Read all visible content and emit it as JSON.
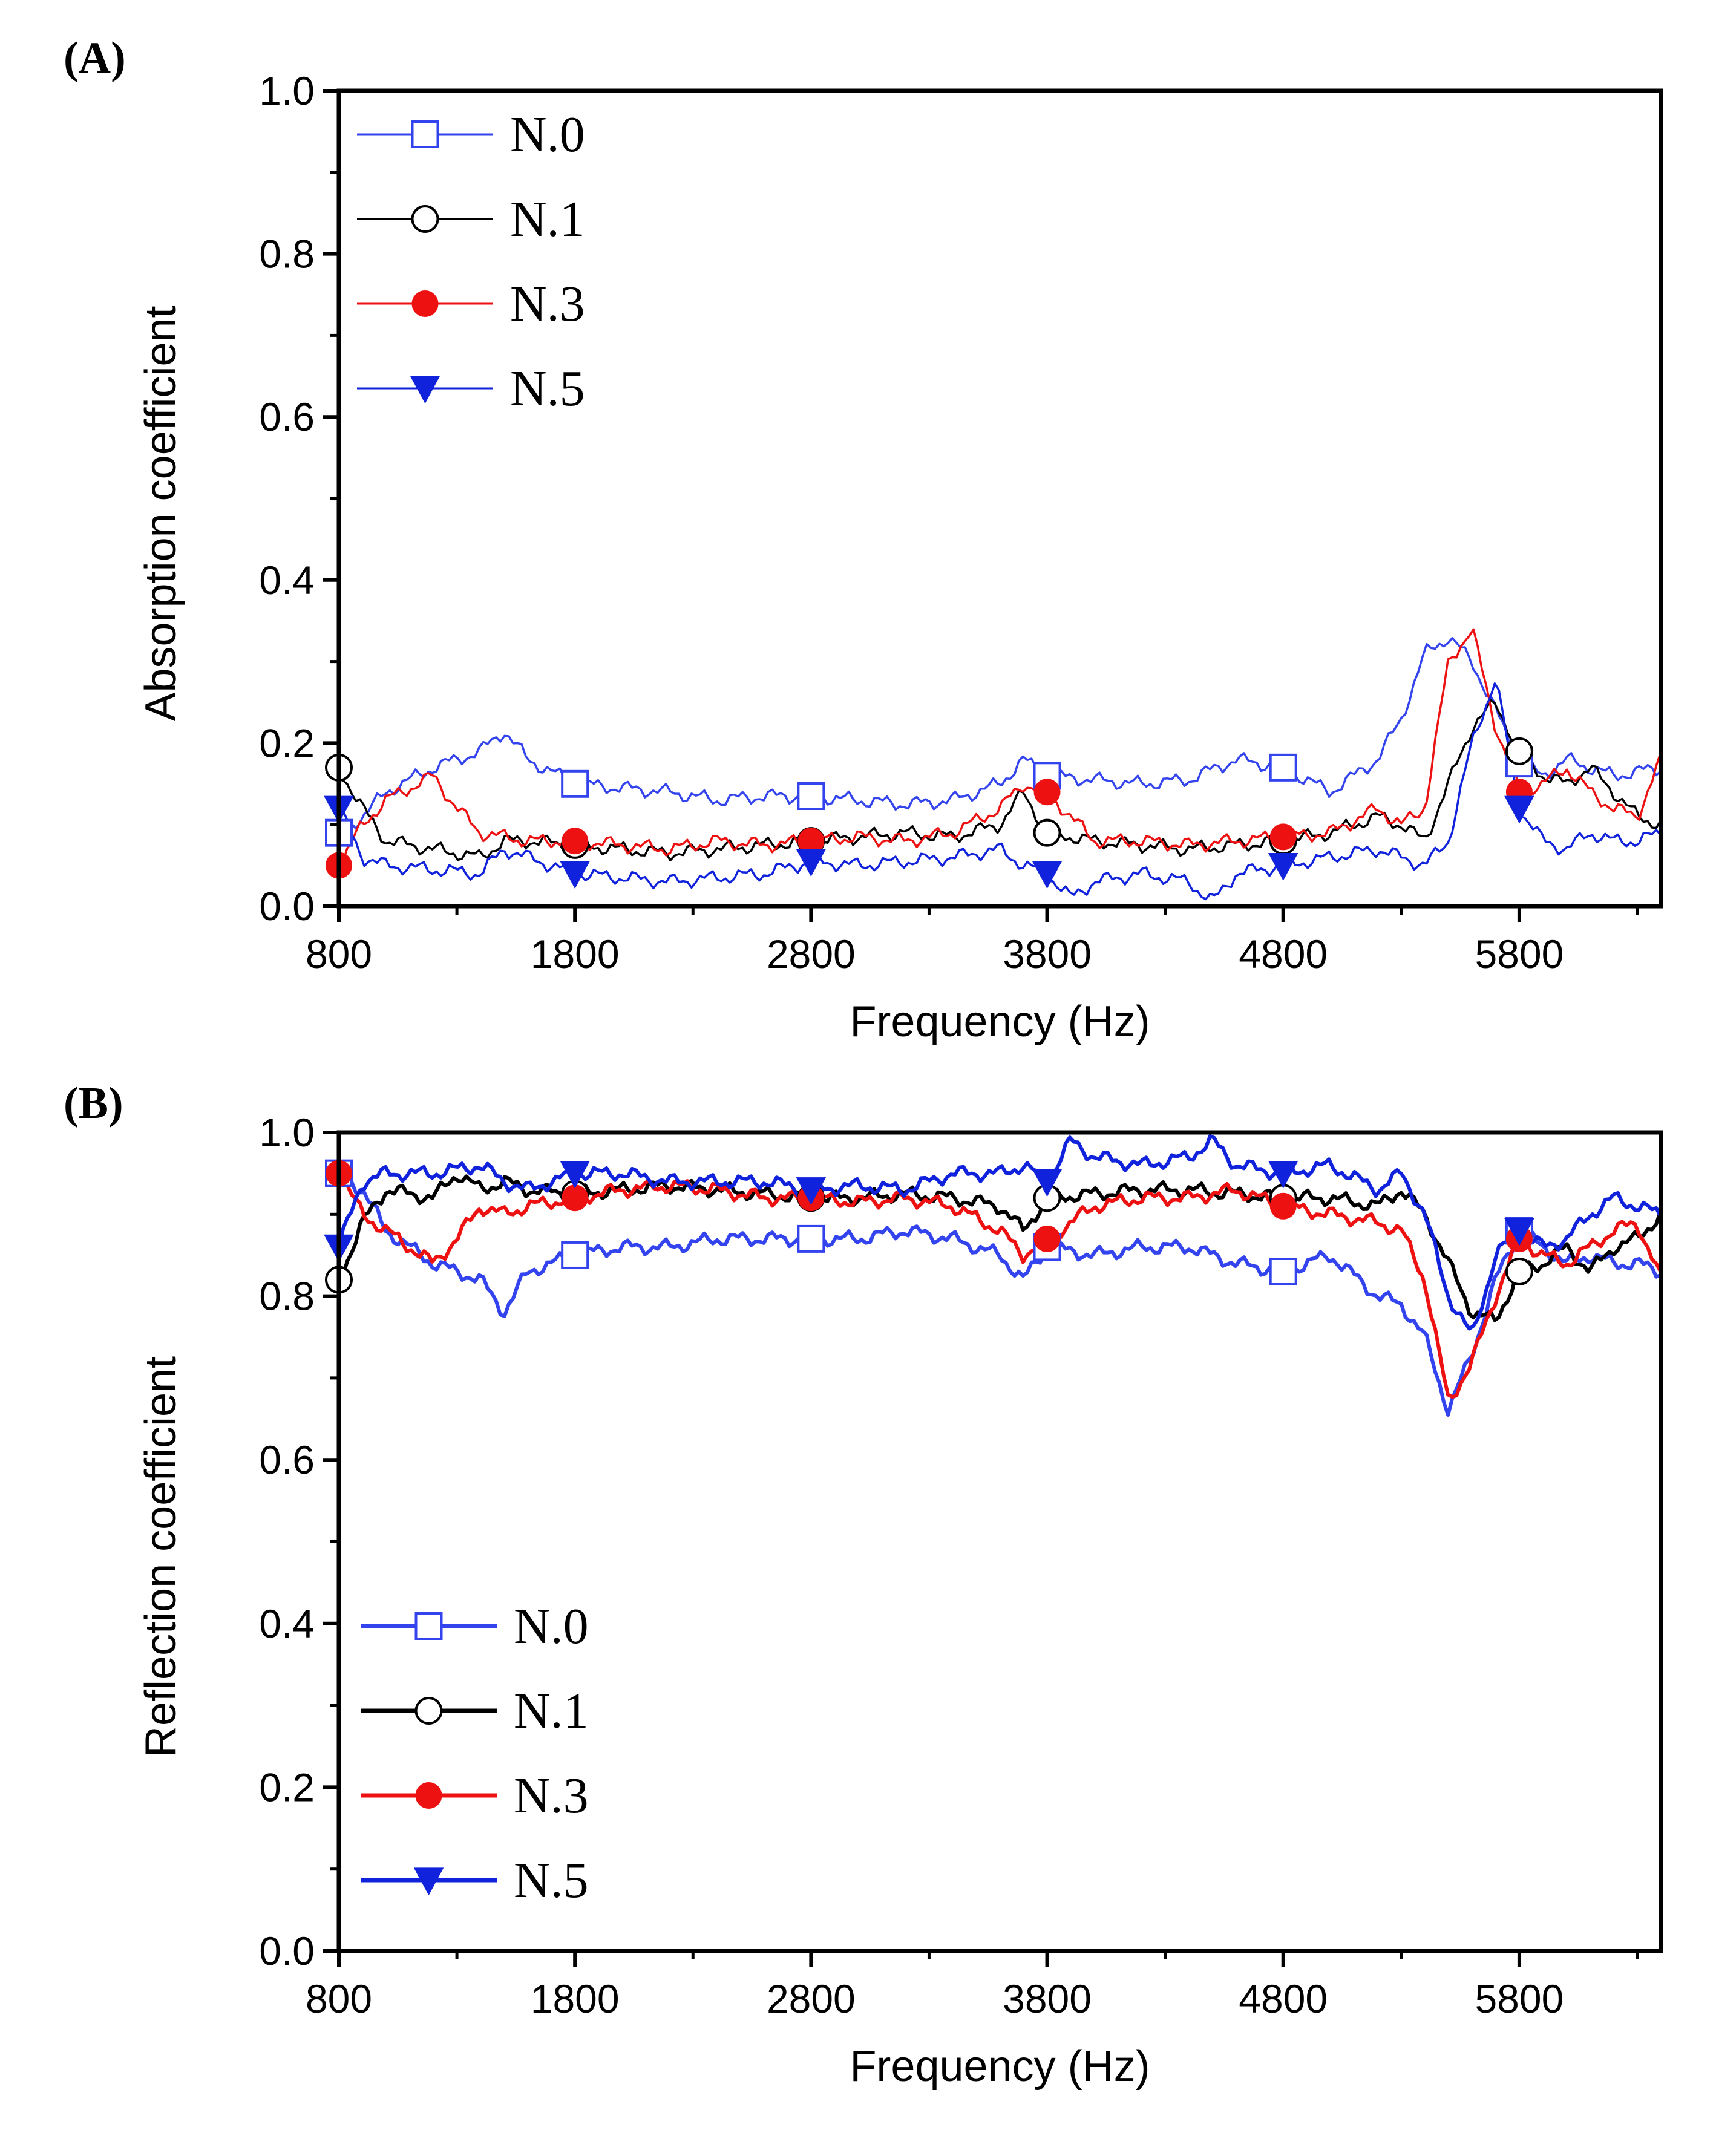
{
  "chart_data": [
    {
      "type": "line",
      "panel_label": "(A)",
      "title": "",
      "xlabel": "Frequency (Hz)",
      "ylabel": "Absorption coefficient",
      "xlim": [
        800,
        6400
      ],
      "ylim": [
        0.0,
        1.0
      ],
      "xticks": [
        800,
        1800,
        2800,
        3800,
        4800,
        5800
      ],
      "xtick_labels": [
        "800",
        "1800",
        "2800",
        "3800",
        "4800",
        "5800"
      ],
      "yticks": [
        0.0,
        0.2,
        0.4,
        0.6,
        0.8,
        1.0
      ],
      "ytick_labels": [
        "0.0",
        "0.2",
        "0.4",
        "0.6",
        "0.8",
        "1.0"
      ],
      "legend_position": "top-left",
      "marker_x": [
        800,
        1800,
        2800,
        3800,
        4800,
        5800
      ],
      "series": [
        {
          "name": "N.0",
          "color": "#3344ee",
          "marker": "open-square",
          "x": [
            800,
            900,
            1000,
            1200,
            1400,
            1500,
            1600,
            1800,
            2000,
            2200,
            2400,
            2600,
            2800,
            3000,
            3200,
            3400,
            3600,
            3700,
            3800,
            4000,
            4200,
            4400,
            4600,
            4800,
            5000,
            5200,
            5300,
            5400,
            5500,
            5600,
            5700,
            5800,
            5900,
            6000,
            6100,
            6200,
            6300,
            6400
          ],
          "values": [
            0.09,
            0.11,
            0.14,
            0.17,
            0.19,
            0.215,
            0.18,
            0.15,
            0.145,
            0.14,
            0.13,
            0.135,
            0.135,
            0.13,
            0.125,
            0.13,
            0.15,
            0.18,
            0.16,
            0.155,
            0.15,
            0.155,
            0.18,
            0.17,
            0.14,
            0.18,
            0.23,
            0.31,
            0.33,
            0.3,
            0.24,
            0.175,
            0.16,
            0.18,
            0.17,
            0.16,
            0.165,
            0.17
          ]
        },
        {
          "name": "N.1",
          "color": "#000000",
          "marker": "open-circle",
          "x": [
            800,
            900,
            1000,
            1200,
            1400,
            1500,
            1600,
            1800,
            2000,
            2200,
            2400,
            2600,
            2800,
            3000,
            3200,
            3400,
            3600,
            3700,
            3800,
            4000,
            4200,
            4400,
            4600,
            4800,
            5000,
            5200,
            5300,
            5400,
            5500,
            5600,
            5700,
            5800,
            5900,
            6000,
            6100,
            6200,
            6300,
            6400
          ],
          "values": [
            0.17,
            0.12,
            0.08,
            0.07,
            0.06,
            0.08,
            0.08,
            0.075,
            0.07,
            0.065,
            0.07,
            0.075,
            0.08,
            0.085,
            0.09,
            0.085,
            0.1,
            0.14,
            0.09,
            0.08,
            0.075,
            0.07,
            0.075,
            0.08,
            0.09,
            0.11,
            0.1,
            0.08,
            0.15,
            0.22,
            0.25,
            0.19,
            0.16,
            0.15,
            0.17,
            0.14,
            0.11,
            0.1
          ]
        },
        {
          "name": "N.3",
          "color": "#ee1111",
          "marker": "filled-circle",
          "x": [
            800,
            900,
            1000,
            1200,
            1300,
            1400,
            1500,
            1600,
            1800,
            2000,
            2200,
            2400,
            2600,
            2800,
            3000,
            3200,
            3400,
            3600,
            3700,
            3800,
            4000,
            4200,
            4400,
            4600,
            4800,
            5000,
            5200,
            5300,
            5400,
            5500,
            5600,
            5700,
            5800,
            5900,
            6000,
            6100,
            6200,
            6300,
            6400
          ],
          "values": [
            0.05,
            0.1,
            0.13,
            0.16,
            0.12,
            0.09,
            0.085,
            0.08,
            0.08,
            0.075,
            0.07,
            0.08,
            0.075,
            0.08,
            0.085,
            0.08,
            0.09,
            0.12,
            0.15,
            0.14,
            0.08,
            0.08,
            0.075,
            0.08,
            0.085,
            0.09,
            0.12,
            0.1,
            0.12,
            0.3,
            0.34,
            0.22,
            0.14,
            0.15,
            0.17,
            0.14,
            0.12,
            0.11,
            0.18
          ]
        },
        {
          "name": "N.5",
          "color": "#1122dd",
          "marker": "filled-triangle-down",
          "x": [
            800,
            900,
            1000,
            1200,
            1400,
            1500,
            1600,
            1800,
            2000,
            2200,
            2400,
            2600,
            2800,
            3000,
            3200,
            3400,
            3600,
            3700,
            3800,
            3900,
            4000,
            4200,
            4400,
            4500,
            4600,
            4800,
            5000,
            5200,
            5300,
            5400,
            5500,
            5600,
            5700,
            5800,
            5900,
            6000,
            6100,
            6200,
            6300,
            6400
          ],
          "values": [
            0.12,
            0.06,
            0.05,
            0.045,
            0.04,
            0.07,
            0.06,
            0.04,
            0.035,
            0.03,
            0.035,
            0.04,
            0.055,
            0.05,
            0.055,
            0.06,
            0.07,
            0.05,
            0.04,
            0.01,
            0.03,
            0.04,
            0.03,
            0.005,
            0.04,
            0.05,
            0.06,
            0.07,
            0.06,
            0.05,
            0.08,
            0.2,
            0.28,
            0.12,
            0.08,
            0.07,
            0.09,
            0.08,
            0.08,
            0.09
          ]
        }
      ]
    },
    {
      "type": "line",
      "panel_label": "(B)",
      "title": "",
      "xlabel": "Frequency (Hz)",
      "ylabel": "Reflection coefficient",
      "xlim": [
        800,
        6400
      ],
      "ylim": [
        0.0,
        1.0
      ],
      "xticks": [
        800,
        1800,
        2800,
        3800,
        4800,
        5800
      ],
      "xtick_labels": [
        "800",
        "1800",
        "2800",
        "3800",
        "4800",
        "5800"
      ],
      "yticks": [
        0.0,
        0.2,
        0.4,
        0.6,
        0.8,
        1.0
      ],
      "ytick_labels": [
        "0.0",
        "0.2",
        "0.4",
        "0.6",
        "0.8",
        "1.0"
      ],
      "legend_position": "bottom-left",
      "marker_x": [
        800,
        1800,
        2800,
        3800,
        4800,
        5800
      ],
      "series": [
        {
          "name": "N.0",
          "color": "#3344ee",
          "marker": "open-square",
          "x": [
            800,
            900,
            1000,
            1200,
            1400,
            1500,
            1600,
            1800,
            2000,
            2200,
            2400,
            2600,
            2800,
            3000,
            3200,
            3400,
            3600,
            3700,
            3800,
            4000,
            4200,
            4400,
            4600,
            4800,
            5000,
            5200,
            5300,
            5400,
            5500,
            5600,
            5700,
            5800,
            5900,
            6000,
            6100,
            6200,
            6300,
            6400
          ],
          "values": [
            0.95,
            0.93,
            0.88,
            0.84,
            0.82,
            0.78,
            0.83,
            0.85,
            0.86,
            0.86,
            0.87,
            0.87,
            0.87,
            0.87,
            0.88,
            0.87,
            0.85,
            0.82,
            0.86,
            0.85,
            0.86,
            0.86,
            0.84,
            0.83,
            0.85,
            0.8,
            0.79,
            0.75,
            0.66,
            0.73,
            0.82,
            0.88,
            0.86,
            0.84,
            0.85,
            0.84,
            0.84,
            0.83
          ]
        },
        {
          "name": "N.1",
          "color": "#000000",
          "marker": "open-circle",
          "x": [
            800,
            900,
            1000,
            1200,
            1300,
            1400,
            1500,
            1600,
            1800,
            2000,
            2200,
            2400,
            2600,
            2800,
            3000,
            3200,
            3400,
            3600,
            3700,
            3800,
            4000,
            4200,
            4400,
            4600,
            4800,
            5000,
            5200,
            5300,
            5400,
            5500,
            5600,
            5700,
            5800,
            5900,
            6000,
            6100,
            6200,
            6300,
            6400
          ],
          "values": [
            0.82,
            0.89,
            0.93,
            0.92,
            0.95,
            0.93,
            0.94,
            0.93,
            0.925,
            0.93,
            0.935,
            0.93,
            0.925,
            0.92,
            0.92,
            0.925,
            0.92,
            0.91,
            0.88,
            0.92,
            0.925,
            0.93,
            0.93,
            0.925,
            0.92,
            0.92,
            0.91,
            0.93,
            0.9,
            0.84,
            0.78,
            0.77,
            0.83,
            0.84,
            0.86,
            0.83,
            0.86,
            0.87,
            0.9
          ]
        },
        {
          "name": "N.3",
          "color": "#ee1111",
          "marker": "filled-circle",
          "x": [
            800,
            900,
            1000,
            1200,
            1300,
            1400,
            1500,
            1600,
            1800,
            2000,
            2200,
            2400,
            2600,
            2800,
            3000,
            3200,
            3400,
            3600,
            3700,
            3800,
            4000,
            4200,
            4400,
            4600,
            4800,
            5000,
            5200,
            5300,
            5400,
            5500,
            5600,
            5700,
            5800,
            5900,
            6000,
            6100,
            6200,
            6300,
            6400
          ],
          "values": [
            0.95,
            0.9,
            0.88,
            0.84,
            0.87,
            0.91,
            0.9,
            0.91,
            0.92,
            0.93,
            0.935,
            0.93,
            0.92,
            0.92,
            0.915,
            0.92,
            0.91,
            0.88,
            0.85,
            0.87,
            0.91,
            0.92,
            0.92,
            0.93,
            0.91,
            0.9,
            0.89,
            0.88,
            0.82,
            0.67,
            0.72,
            0.8,
            0.87,
            0.85,
            0.84,
            0.86,
            0.88,
            0.89,
            0.82
          ]
        },
        {
          "name": "N.5",
          "color": "#1122dd",
          "marker": "filled-triangle-down",
          "x": [
            800,
            900,
            1000,
            1200,
            1400,
            1500,
            1600,
            1800,
            2000,
            2200,
            2400,
            2600,
            2800,
            3000,
            3200,
            3400,
            3600,
            3700,
            3800,
            3900,
            4000,
            4200,
            4400,
            4500,
            4600,
            4800,
            5000,
            5200,
            5300,
            5400,
            5500,
            5600,
            5700,
            5800,
            5900,
            6000,
            6100,
            6200,
            6300,
            6400
          ],
          "values": [
            0.86,
            0.94,
            0.95,
            0.95,
            0.96,
            0.94,
            0.93,
            0.95,
            0.95,
            0.94,
            0.94,
            0.94,
            0.93,
            0.935,
            0.93,
            0.95,
            0.95,
            0.96,
            0.94,
            0.99,
            0.97,
            0.96,
            0.97,
            0.99,
            0.96,
            0.95,
            0.96,
            0.93,
            0.95,
            0.9,
            0.8,
            0.75,
            0.85,
            0.88,
            0.86,
            0.87,
            0.9,
            0.92,
            0.91,
            0.9
          ]
        }
      ]
    }
  ]
}
